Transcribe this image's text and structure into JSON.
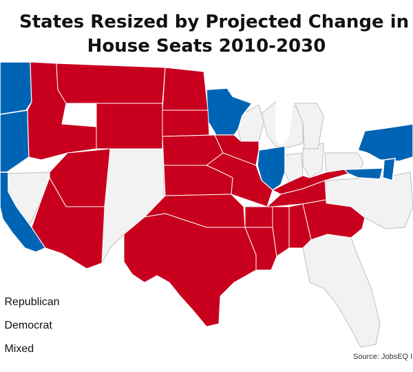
{
  "title_line1": "States Resized by Projected Change in",
  "title_line2": "House Seats 2010-2030",
  "legend": [
    {
      "label": "Republican",
      "color": "#c8001e"
    },
    {
      "label": "Democrat",
      "color": "#0064b4"
    },
    {
      "label": "Mixed",
      "color": "#f2f2f2"
    }
  ],
  "source": "Source: JobsEQ I",
  "colors": {
    "republican": "#c8001e",
    "democrat": "#0064b4",
    "mixed": "#f2f2f2",
    "border": "#ffffff",
    "outline": "#bdbdbd"
  }
}
